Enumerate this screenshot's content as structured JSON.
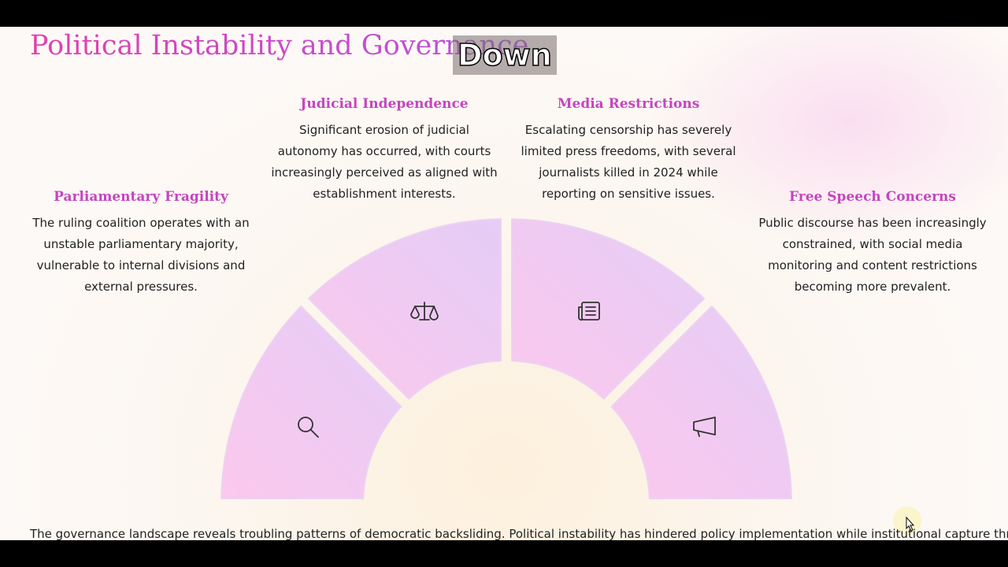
{
  "title": "Political Instability and Governance",
  "caption": "Down",
  "sections": [
    {
      "heading": "Parliamentary Fragility",
      "text": "The ruling coalition operates with an unstable parliamentary majority, vulnerable to internal divisions and external pressures."
    },
    {
      "heading": "Judicial Independence",
      "text": "Significant erosion of judicial autonomy has occurred, with courts increasingly perceived as aligned with establishment interests."
    },
    {
      "heading": "Media Restrictions",
      "text": "Escalating censorship has severely limited press freedoms, with several journalists killed in 2024 while reporting on sensitive issues."
    },
    {
      "heading": "Free Speech Concerns",
      "text": "Public discourse has been increasingly constrained, with social media monitoring and content restrictions becoming more prevalent."
    }
  ],
  "footer": "The governance landscape reveals troubling patterns of democratic backsliding. Political instability has hindered policy implementation while institutional capture threatens long-"
}
